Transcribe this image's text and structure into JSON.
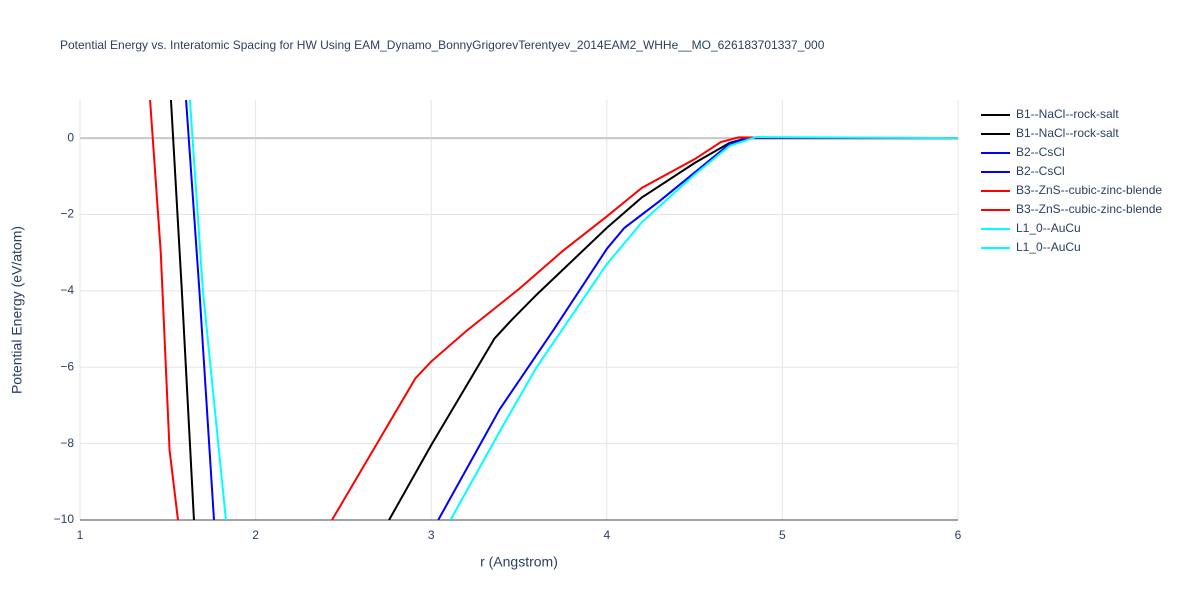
{
  "chart_data": {
    "type": "line",
    "title": "Potential Energy vs. Interatomic Spacing for HW Using EAM_Dynamo_BonnyGrigorevTerentyev_2014EAM2_WHHe__MO_626183701337_000",
    "x_label": "r (Angstrom)",
    "y_label": "Potential Energy (eV/atom)",
    "xlim": [
      1,
      6
    ],
    "ylim": [
      -10,
      1
    ],
    "xticks": [
      1,
      2,
      3,
      4,
      5,
      6
    ],
    "yticks": [
      {
        "value": -10,
        "label": "−10"
      },
      {
        "value": -8,
        "label": "−8"
      },
      {
        "value": -6,
        "label": "−6"
      },
      {
        "value": -4,
        "label": "−4"
      },
      {
        "value": -2,
        "label": "−2"
      },
      0
    ],
    "grid": true,
    "legend": "right",
    "series": [
      {
        "name": "B1--NaCl--rock-salt",
        "color": "#000000",
        "x": [
          1.518,
          1.58,
          1.649
        ],
        "values": [
          1,
          -4,
          -10
        ]
      },
      {
        "name": "B1--NaCl--rock-salt",
        "color": "#000000",
        "x": [
          2.76,
          3.0,
          3.36,
          3.45,
          3.6,
          4.0,
          4.2,
          4.5,
          4.7,
          4.8,
          6.0
        ],
        "values": [
          -10,
          -8.04,
          -5.25,
          -4.8,
          -4.1,
          -2.35,
          -1.55,
          -0.65,
          -0.12,
          0,
          0
        ]
      },
      {
        "name": "B2--CsCl",
        "color": "#0000ff",
        "x": [
          1.604,
          1.68,
          1.763
        ],
        "values": [
          1,
          -4,
          -10
        ]
      },
      {
        "name": "B2--CsCl",
        "color": "#0000ff",
        "x": [
          3.04,
          3.39,
          3.7,
          4.0,
          4.1,
          4.3,
          4.5,
          4.7,
          4.8,
          6.0
        ],
        "values": [
          -10,
          -7.1,
          -5.0,
          -2.9,
          -2.35,
          -1.65,
          -0.9,
          -0.15,
          0,
          0
        ]
      },
      {
        "name": "B3--ZnS--cubic-zinc-blende",
        "color": "#ff0000",
        "x": [
          1.399,
          1.46,
          1.51,
          1.558
        ],
        "values": [
          1,
          -3,
          -8.17,
          -10
        ]
      },
      {
        "name": "B3--ZnS--cubic-zinc-blende",
        "color": "#ff0000",
        "x": [
          2.435,
          2.91,
          3.0,
          3.2,
          3.5,
          3.75,
          4.0,
          4.2,
          4.5,
          4.65,
          4.75,
          6.0
        ],
        "values": [
          -10,
          -6.29,
          -5.85,
          -5.05,
          -3.95,
          -2.95,
          -2.05,
          -1.3,
          -0.55,
          -0.1,
          0.02,
          0
        ]
      },
      {
        "name": "L1_0--AuCu",
        "color": "#00ffff",
        "x": [
          1.626,
          1.7,
          1.831
        ],
        "values": [
          1,
          -4,
          -10
        ]
      },
      {
        "name": "L1_0--AuCu",
        "color": "#00ffff",
        "x": [
          3.11,
          3.4,
          3.6,
          4.0,
          4.2,
          4.5,
          4.7,
          4.85,
          6.0
        ],
        "values": [
          -10,
          -7.6,
          -6.0,
          -3.3,
          -2.2,
          -0.95,
          -0.2,
          0.03,
          0
        ]
      }
    ]
  }
}
